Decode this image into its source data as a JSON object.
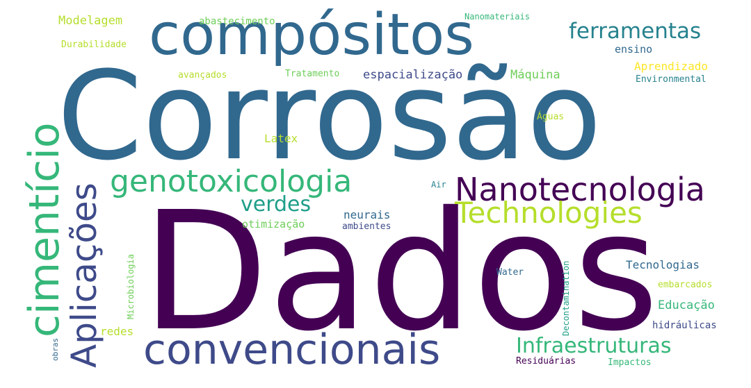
{
  "words": {
    "corrosao": {
      "text": "Corrosão",
      "color": "#31688e"
    },
    "dados": {
      "text": "Dados",
      "color": "#440154"
    },
    "compositos": {
      "text": "compósitos",
      "color": "#31688e"
    },
    "cimenticio": {
      "text": "cimentício",
      "color": "#35b779"
    },
    "aplicacoes": {
      "text": "Aplicações",
      "color": "#3e4a89"
    },
    "convencionais": {
      "text": "convencionais",
      "color": "#3e4a89"
    },
    "nanotecnologia": {
      "text": "Nanotecnologia",
      "color": "#440154"
    },
    "genotoxicologia": {
      "text": "genotoxicologia",
      "color": "#35b779"
    },
    "technologies": {
      "text": "Technologies",
      "color": "#b5de2b"
    },
    "ferramentas": {
      "text": "ferramentas",
      "color": "#26828e"
    },
    "infraestruturas": {
      "text": "Infraestruturas",
      "color": "#35b779"
    },
    "verdes": {
      "text": "verdes",
      "color": "#1f9e89"
    },
    "modelagem": {
      "text": "Modelagem",
      "color": "#b5de2b"
    },
    "durabilidade": {
      "text": "Durabilidade",
      "color": "#b5de2b"
    },
    "abastecimento": {
      "text": "abastecimento",
      "color": "#6ece58"
    },
    "nanomateriais": {
      "text": "Nanomateriais",
      "color": "#35b779"
    },
    "ensino": {
      "text": "ensino",
      "color": "#31688e"
    },
    "aprendizado": {
      "text": "Aprendizado",
      "color": "#fde725"
    },
    "environmental": {
      "text": "Environmental",
      "color": "#26828e"
    },
    "avancados": {
      "text": "avançados",
      "color": "#b5de2b"
    },
    "tratamento": {
      "text": "Tratamento",
      "color": "#6ece58"
    },
    "espacializacao": {
      "text": "espacialização",
      "color": "#3e4a89"
    },
    "maquina": {
      "text": "Máquina",
      "color": "#6ece58"
    },
    "aguas": {
      "text": "Águas",
      "color": "#b5de2b"
    },
    "latex": {
      "text": "Latex",
      "color": "#b5de2b"
    },
    "air": {
      "text": "Air",
      "color": "#26828e"
    },
    "neurais": {
      "text": "neurais",
      "color": "#31688e"
    },
    "otimizacao": {
      "text": "otimização",
      "color": "#6ece58"
    },
    "ambientes": {
      "text": "ambientes",
      "color": "#3e4a89"
    },
    "microbiologia": {
      "text": "Microbiologia",
      "color": "#6ece58"
    },
    "decontamination": {
      "text": "Decontamination",
      "color": "#1f9e89"
    },
    "water": {
      "text": "Water",
      "color": "#31688e"
    },
    "tecnologias": {
      "text": "Tecnologias",
      "color": "#31688e"
    },
    "embarcados": {
      "text": "embarcados",
      "color": "#b5de2b"
    },
    "educacao": {
      "text": "Educação",
      "color": "#35b779"
    },
    "hidraulicas": {
      "text": "hidráulicas",
      "color": "#3e4a89"
    },
    "redes": {
      "text": "redes",
      "color": "#b5de2b"
    },
    "obras": {
      "text": "obras",
      "color": "#31688e"
    },
    "residuarias": {
      "text": "Residuárias",
      "color": "#440154"
    },
    "impactos": {
      "text": "Impactos",
      "color": "#35b779"
    }
  }
}
